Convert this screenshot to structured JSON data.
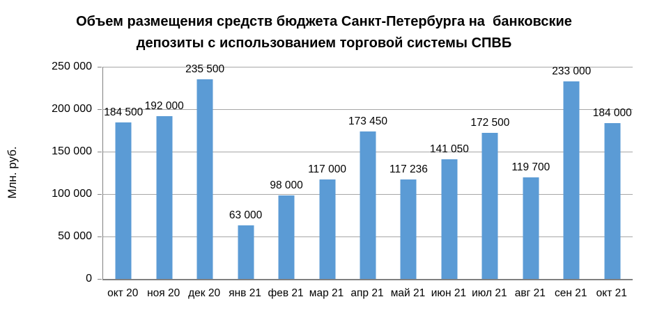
{
  "chart_data": {
    "type": "bar",
    "title": "Объем размещения средств бюджета Санкт-Петербурга на  банковские депозиты с использованием торговой системы СПВБ",
    "title_line1": "Объем размещения средств бюджета Санкт-Петербурга на  банковские",
    "title_line2": "депозиты с использованием торговой системы СПВБ",
    "ylabel": "Млн. руб.",
    "xlabel": "",
    "categories": [
      "окт 20",
      "ноя 20",
      "дек 20",
      "янв 21",
      "фев 21",
      "мар 21",
      "апр 21",
      "май 21",
      "июн 21",
      "июл 21",
      "авг 21",
      "сен 21",
      "окт 21"
    ],
    "values": [
      184500,
      192000,
      235500,
      63000,
      98000,
      117000,
      173450,
      117236,
      141050,
      172500,
      119700,
      233000,
      184000
    ],
    "value_labels": [
      "184 500",
      "192 000",
      "235 500",
      "63 000",
      "98 000",
      "117 000",
      "173 450",
      "117 236",
      "141 050",
      "172 500",
      "119 700",
      "233 000",
      "184 000"
    ],
    "ylim": [
      0,
      250000
    ],
    "yticks": [
      {
        "value": 0,
        "label": "0"
      },
      {
        "value": 50000,
        "label": "50 000"
      },
      {
        "value": 100000,
        "label": "100 000"
      },
      {
        "value": 150000,
        "label": "150 000"
      },
      {
        "value": 200000,
        "label": "200 000"
      },
      {
        "value": 250000,
        "label": "250 000"
      }
    ],
    "grid": "horizontal",
    "legend": "none",
    "colors": {
      "bar": "#5b9bd5",
      "gridline": "#a6a6a6",
      "axis": "#808080",
      "text": "#000000",
      "background": "#ffffff"
    }
  }
}
